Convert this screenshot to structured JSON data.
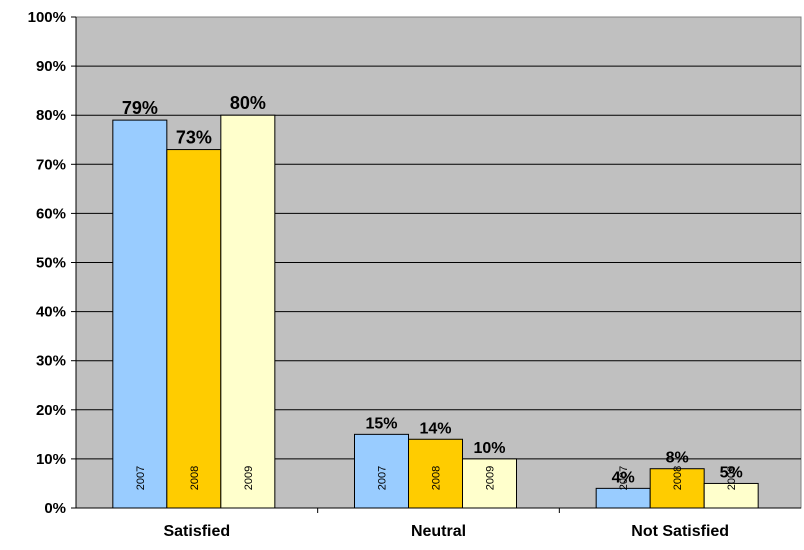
{
  "chart_data": {
    "type": "bar",
    "categories": [
      "Satisfied",
      "Neutral",
      "Not Satisfied"
    ],
    "series": [
      {
        "name": "2007",
        "values": [
          79,
          15,
          4
        ],
        "color": "#99CCFF"
      },
      {
        "name": "2008",
        "values": [
          73,
          14,
          8
        ],
        "color": "#FFCC00"
      },
      {
        "name": "2009",
        "values": [
          80,
          10,
          5
        ],
        "color": "#FFFFCC"
      }
    ],
    "data_labels": [
      [
        "79%",
        "15%",
        "4%"
      ],
      [
        "73%",
        "14%",
        "8%"
      ],
      [
        "80%",
        "10%",
        "5%"
      ]
    ],
    "y_ticks": [
      "0%",
      "10%",
      "20%",
      "30%",
      "40%",
      "50%",
      "60%",
      "70%",
      "80%",
      "90%",
      "100%"
    ],
    "ylim": [
      0,
      100
    ],
    "title": "",
    "xlabel": "",
    "ylabel": "",
    "grid": true,
    "legend": "none",
    "plot_background": "#C0C0C0"
  }
}
